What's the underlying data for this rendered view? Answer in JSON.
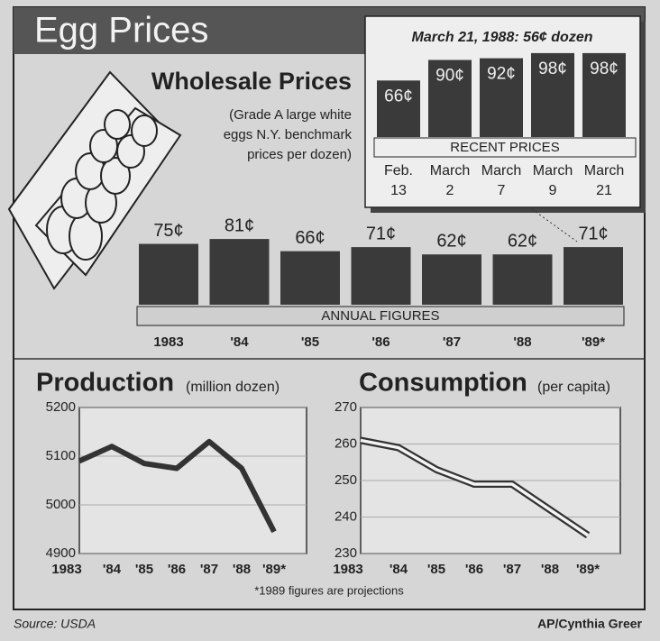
{
  "title": "Egg Prices",
  "footnote": "*1989 figures are projections",
  "source": "Source: USDA",
  "credit": "AP/Cynthia Greer",
  "chart_data": [
    {
      "type": "bar",
      "title": "Wholesale Prices",
      "subtitle": [
        "(Grade A large white",
        "eggs N.Y. benchmark",
        "prices per dozen)"
      ],
      "label": "ANNUAL FIGURES",
      "categories": [
        "1983",
        "'84",
        "'85",
        "'86",
        "'87",
        "'88",
        "'89*"
      ],
      "values": [
        75,
        81,
        66,
        71,
        62,
        62,
        71
      ],
      "value_labels": [
        "75¢",
        "81¢",
        "66¢",
        "71¢",
        "62¢",
        "62¢",
        "71¢"
      ],
      "color": "#3a3a3a"
    },
    {
      "type": "bar",
      "title": "March 21, 1988: 56¢ dozen",
      "label": "RECENT PRICES",
      "categories": [
        "Feb. 13",
        "March 2",
        "March 7",
        "March 9",
        "March 21"
      ],
      "values": [
        66,
        90,
        92,
        98,
        98
      ],
      "value_labels": [
        "66¢",
        "90¢",
        "92¢",
        "98¢",
        "98¢"
      ],
      "color": "#3a3a3a"
    },
    {
      "type": "line",
      "title": "Production",
      "subtitle": "(million dozen)",
      "categories": [
        "1983",
        "'84",
        "'85",
        "'86",
        "'87",
        "'88",
        "'89*"
      ],
      "values": [
        5090,
        5120,
        5085,
        5075,
        5130,
        5075,
        4945
      ],
      "ylim": [
        4900,
        5200
      ],
      "yticks": [
        4900,
        5000,
        5100,
        5200
      ],
      "grid": true,
      "color": "#333333"
    },
    {
      "type": "line",
      "title": "Consumption",
      "subtitle": "(per capita)",
      "categories": [
        "1983",
        "'84",
        "'85",
        "'86",
        "'87",
        "'88",
        "'89*"
      ],
      "values": [
        261,
        259,
        253,
        249,
        249,
        242,
        235
      ],
      "ylim": [
        230,
        270
      ],
      "yticks": [
        230,
        240,
        250,
        260,
        270
      ],
      "grid": true,
      "color": "#333333"
    }
  ]
}
